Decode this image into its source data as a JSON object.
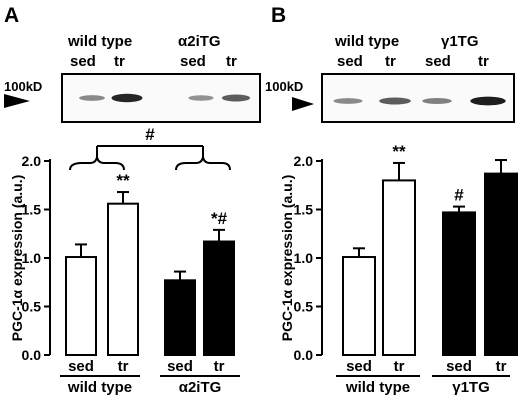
{
  "chart_data": [
    {
      "panel": "A",
      "type": "bar",
      "ylabel": "PGC-1α expression (a.u.)",
      "ylim": [
        0,
        2.0
      ],
      "yticks": [
        "0.0",
        "0.5",
        "1.0",
        "1.5",
        "2.0"
      ],
      "blot": {
        "header_groups": [
          "wild type",
          "α2iTG"
        ],
        "header_lanes": [
          "sed",
          "tr",
          "sed",
          "tr"
        ],
        "marker": "100kD",
        "band_intensity": [
          0.35,
          0.9,
          0.3,
          0.6
        ]
      },
      "groups": [
        {
          "name": "wild type",
          "bars": [
            {
              "label": "sed",
              "value": 1.01,
              "error": 0.13,
              "fill": "#ffffff",
              "annotation": ""
            },
            {
              "label": "tr",
              "value": 1.56,
              "error": 0.12,
              "fill": "#ffffff",
              "annotation": "**"
            }
          ]
        },
        {
          "name": "α2iTG",
          "bars": [
            {
              "label": "sed",
              "value": 0.77,
              "error": 0.09,
              "fill": "#000000",
              "annotation": ""
            },
            {
              "label": "tr",
              "value": 1.17,
              "error": 0.12,
              "fill": "#000000",
              "annotation": "*#"
            }
          ]
        }
      ],
      "bracket_annotation": "#"
    },
    {
      "panel": "B",
      "type": "bar",
      "ylabel": "PGC-1α expression (a.u.)",
      "ylim": [
        0,
        2.0
      ],
      "yticks": [
        "0.0",
        "0.5",
        "1.0",
        "1.5",
        "2.0"
      ],
      "blot": {
        "header_groups": [
          "wild type",
          "γ1TG"
        ],
        "header_lanes": [
          "sed",
          "tr",
          "sed",
          "tr"
        ],
        "marker": "100kD",
        "band_intensity": [
          0.35,
          0.6,
          0.4,
          0.95
        ]
      },
      "groups": [
        {
          "name": "wild type",
          "bars": [
            {
              "label": "sed",
              "value": 1.01,
              "error": 0.09,
              "fill": "#ffffff",
              "annotation": ""
            },
            {
              "label": "tr",
              "value": 1.8,
              "error": 0.18,
              "fill": "#ffffff",
              "annotation": "**"
            }
          ]
        },
        {
          "name": "γ1TG",
          "bars": [
            {
              "label": "sed",
              "value": 1.47,
              "error": 0.06,
              "fill": "#000000",
              "annotation": "#"
            },
            {
              "label": "tr",
              "value": 1.87,
              "error": 0.14,
              "fill": "#000000",
              "annotation": ""
            }
          ]
        }
      ],
      "bracket_annotation": ""
    }
  ]
}
